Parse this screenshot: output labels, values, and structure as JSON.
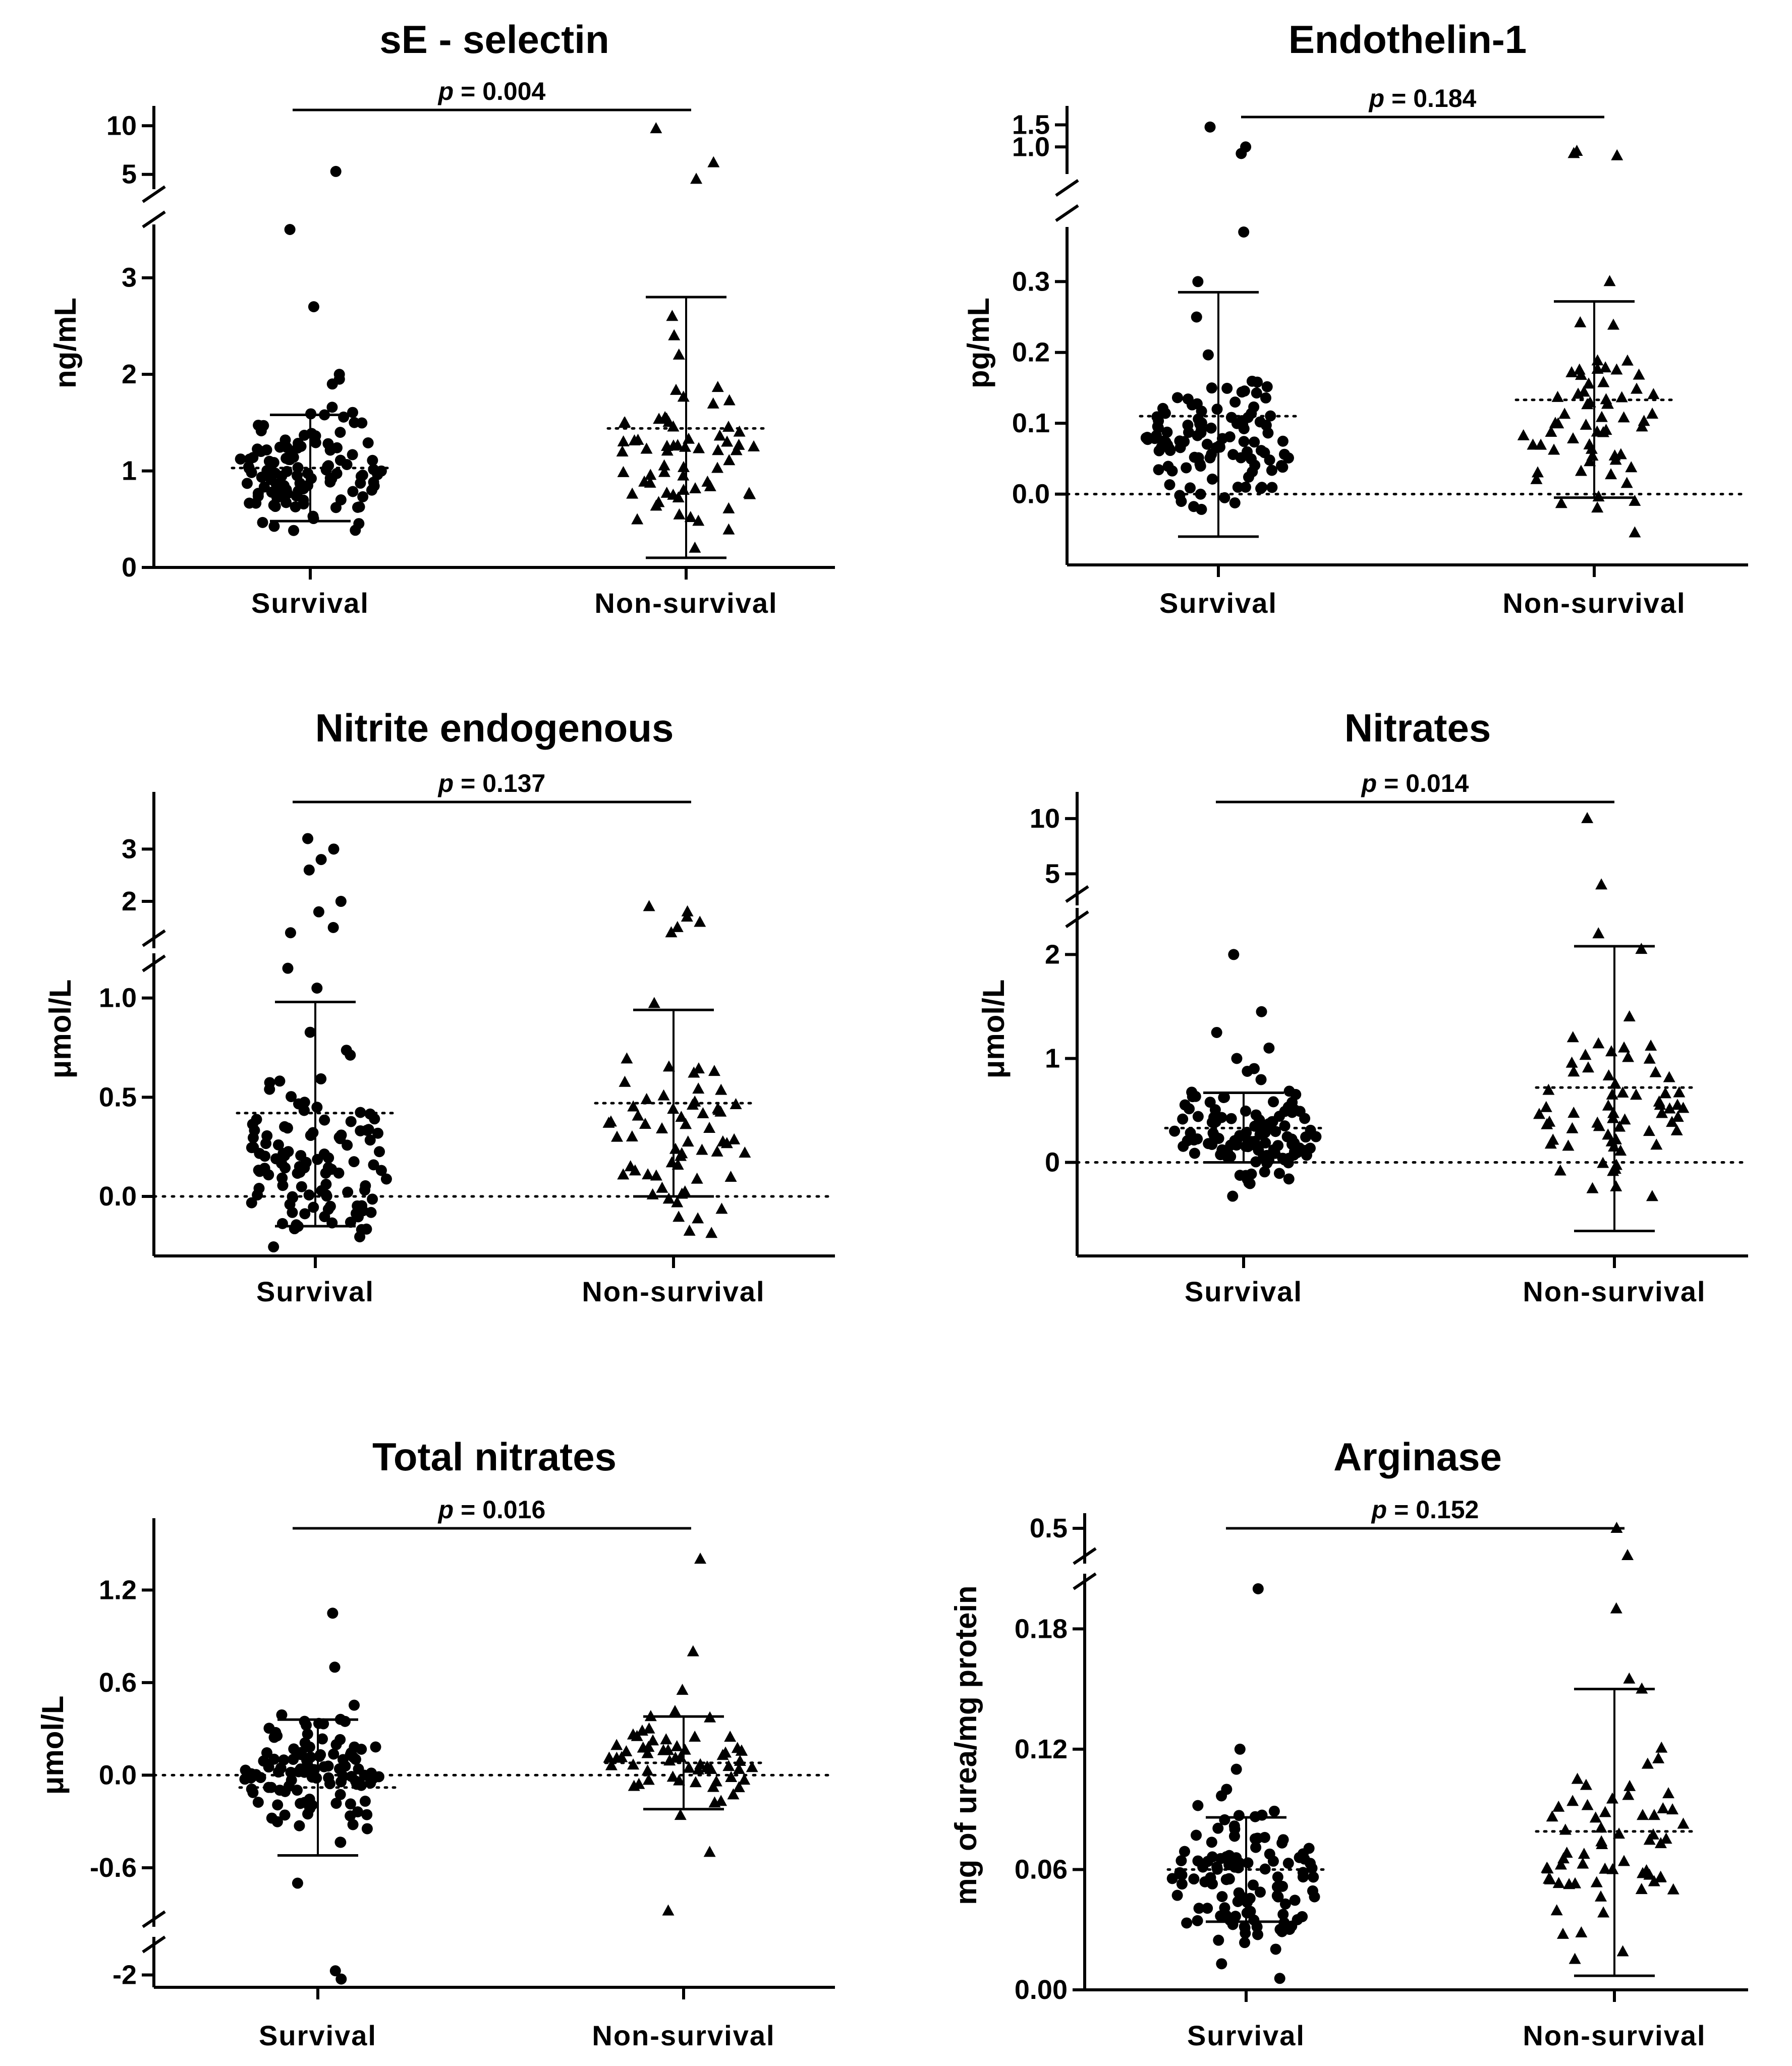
{
  "chart_data": [
    {
      "type": "scatter",
      "title": "sE - selectin",
      "ylabel": "ng/mL",
      "categories": [
        "Survival",
        "Non-survival"
      ],
      "p_label": "p",
      "p_text": " = 0.004",
      "y_ticks_lower": [
        "0",
        "1",
        "2",
        "3"
      ],
      "y_ticks_upper": [
        "5",
        "10"
      ],
      "ylim_lower": [
        0,
        3.5
      ],
      "ylim_upper": [
        4,
        11
      ],
      "series": [
        {
          "name": "Survival",
          "marker": "circle",
          "mean": 1.03,
          "err_low": 0.48,
          "err_high": 1.58,
          "n": 110,
          "center": 1.0,
          "spread": 0.3,
          "outliers": [
            1.9,
            1.95,
            2.0,
            2.7,
            3.5,
            5.3
          ]
        },
        {
          "name": "Non-survival",
          "marker": "triangle",
          "mean": 1.44,
          "err_low": 0.1,
          "err_high": 2.8,
          "n": 60,
          "center": 1.1,
          "spread": 0.4,
          "outliers": [
            0.2,
            2.2,
            2.4,
            2.6,
            4.5,
            6.2,
            9.7
          ]
        }
      ]
    },
    {
      "type": "scatter",
      "title": "Endothelin-1",
      "ylabel": "pg/mL",
      "categories": [
        "Survival",
        "Non-survival"
      ],
      "p_label": "p",
      "p_text": " = 0.184",
      "y_ticks_lower": [
        "0.0",
        "0.1",
        "0.2",
        "0.3"
      ],
      "y_ticks_upper": [
        "1.0",
        "1.5"
      ],
      "ylim_lower": [
        -0.1,
        0.37
      ],
      "ylim_upper": [
        0.5,
        1.7
      ],
      "series": [
        {
          "name": "Survival",
          "marker": "circle",
          "mean": 0.11,
          "err_low": -0.06,
          "err_high": 0.285,
          "n": 110,
          "center": 0.07,
          "spread": 0.045,
          "outliers": [
            0.25,
            0.3,
            0.37,
            0.85,
            1.0,
            1.45
          ]
        },
        {
          "name": "Non-survival",
          "marker": "triangle",
          "mean": 0.133,
          "err_low": -0.005,
          "err_high": 0.272,
          "n": 60,
          "center": 0.1,
          "spread": 0.06,
          "outliers": [
            0.3,
            0.8,
            0.85,
            0.9
          ]
        }
      ]
    },
    {
      "type": "scatter",
      "title": "Nitrite endogenous",
      "ylabel": "μmol/L",
      "categories": [
        "Survival",
        "Non-survival"
      ],
      "p_label": "p",
      "p_text": " = 0.137",
      "y_ticks_lower": [
        "0.0",
        "0.5",
        "1.0"
      ],
      "y_ticks_upper": [
        "2",
        "3"
      ],
      "ylim_lower": [
        -0.3,
        1.2
      ],
      "ylim_upper": [
        1.2,
        3.9
      ],
      "series": [
        {
          "name": "Survival",
          "marker": "circle",
          "mean": 0.42,
          "err_low": -0.15,
          "err_high": 0.98,
          "n": 110,
          "center": 0.15,
          "spread": 0.25,
          "outliers": [
            1.05,
            1.15,
            1.4,
            1.5,
            1.8,
            2.0,
            2.6,
            2.8,
            3.0,
            3.2
          ]
        },
        {
          "name": "Non-survival",
          "marker": "triangle",
          "mean": 0.47,
          "err_low": 0.0,
          "err_high": 0.94,
          "n": 60,
          "center": 0.3,
          "spread": 0.25,
          "outliers": [
            1.4,
            1.5,
            1.6,
            1.7,
            1.8,
            1.9
          ]
        }
      ]
    },
    {
      "type": "scatter",
      "title": "Nitrates",
      "ylabel": "μmol/L",
      "categories": [
        "Survival",
        "Non-survival"
      ],
      "p_label": "p",
      "p_text": " = 0.014",
      "y_ticks_lower": [
        "0",
        "1",
        "2"
      ],
      "y_ticks_upper": [
        "5",
        "10"
      ],
      "ylim_lower": [
        -0.9,
        2.4
      ],
      "ylim_upper": [
        2.6,
        11.5
      ],
      "series": [
        {
          "name": "Survival",
          "marker": "circle",
          "mean": 0.33,
          "err_low": 0.0,
          "err_high": 0.67,
          "n": 110,
          "center": 0.25,
          "spread": 0.25,
          "outliers": [
            1.0,
            1.1,
            1.25,
            1.45,
            2.0
          ]
        },
        {
          "name": "Non-survival",
          "marker": "triangle",
          "mean": 0.72,
          "err_low": -0.66,
          "err_high": 2.08,
          "n": 60,
          "center": 0.45,
          "spread": 0.35,
          "outliers": [
            1.2,
            1.4,
            2.05,
            2.2,
            4.0,
            10.0
          ]
        }
      ]
    },
    {
      "type": "scatter",
      "title": "Total nitrates",
      "ylabel": "μmol/L",
      "categories": [
        "Survival",
        "Non-survival"
      ],
      "p_label": "p",
      "p_text": " = 0.016",
      "y_ticks_lower": [
        "-2"
      ],
      "y_ticks_upper": [
        "-0.6",
        "0.0",
        "0.6",
        "1.2"
      ],
      "ylim_lower": [
        -2.15,
        -1.6
      ],
      "ylim_upper": [
        -0.95,
        1.6
      ],
      "series": [
        {
          "name": "Survival",
          "marker": "circle",
          "mean": -0.08,
          "err_low": -0.52,
          "err_high": 0.36,
          "n": 110,
          "center": 0.0,
          "spread": 0.18,
          "outliers": [
            0.7,
            1.05,
            -0.7,
            -1.95,
            -2.05
          ]
        },
        {
          "name": "Non-survival",
          "marker": "triangle",
          "mean": 0.08,
          "err_low": -0.22,
          "err_high": 0.38,
          "n": 60,
          "center": 0.1,
          "spread": 0.15,
          "outliers": [
            0.55,
            0.8,
            1.4,
            -0.5,
            -0.88
          ]
        }
      ]
    },
    {
      "type": "scatter",
      "title": "Arginase",
      "ylabel": "mg of urea/mg protein",
      "categories": [
        "Survival",
        "Non-survival"
      ],
      "p_label": "p",
      "p_text": " = 0.152",
      "y_ticks_lower": [
        "0.00",
        "0.06",
        "0.12",
        "0.18"
      ],
      "y_ticks_upper": [
        "0.5"
      ],
      "ylim_lower": [
        0,
        0.205
      ],
      "ylim_upper": [
        0.2,
        0.55
      ],
      "series": [
        {
          "name": "Survival",
          "marker": "circle",
          "mean": 0.06,
          "err_low": 0.034,
          "err_high": 0.086,
          "n": 110,
          "center": 0.055,
          "spread": 0.018,
          "outliers": [
            0.1,
            0.11,
            0.12,
            0.2,
            0.013
          ]
        },
        {
          "name": "Non-survival",
          "marker": "triangle",
          "mean": 0.079,
          "err_low": 0.007,
          "err_high": 0.15,
          "n": 60,
          "center": 0.07,
          "spread": 0.025,
          "outliers": [
            0.15,
            0.155,
            0.19,
            0.23,
            0.5
          ]
        }
      ]
    }
  ]
}
